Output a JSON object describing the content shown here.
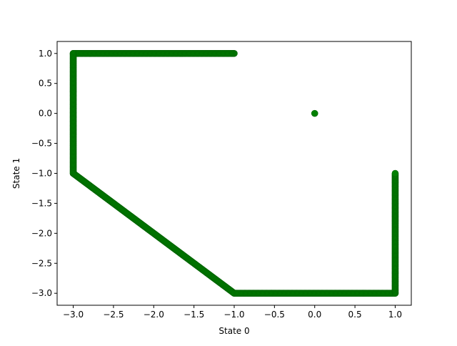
{
  "chart_data": {
    "type": "scatter",
    "title": "",
    "xlabel": "State 0",
    "ylabel": "State 1",
    "xlim": [
      -3.2,
      1.2
    ],
    "ylim": [
      -3.2,
      1.2
    ],
    "x_ticks": [
      -3.0,
      -2.5,
      -2.0,
      -1.5,
      -1.0,
      -0.5,
      0.0,
      0.5,
      1.0
    ],
    "y_ticks": [
      -3.0,
      -2.5,
      -2.0,
      -1.5,
      -1.0,
      -0.5,
      0.0,
      0.5,
      1.0
    ],
    "x_tick_labels": [
      "−3.0",
      "−2.5",
      "−2.0",
      "−1.5",
      "−1.0",
      "−0.5",
      "0.0",
      "0.5",
      "1.0"
    ],
    "y_tick_labels": [
      "−3.0",
      "−2.5",
      "−2.0",
      "−1.5",
      "−1.0",
      "−0.5",
      "0.0",
      "0.5",
      "1.0"
    ],
    "grid": false,
    "legend": null,
    "marker_color": "#008000",
    "series": [
      {
        "description_points": "trajectory path traced by dense markers",
        "segments": [
          {
            "from": [
              -1.0,
              1.0
            ],
            "to": [
              -3.0,
              1.0
            ]
          },
          {
            "from": [
              -3.0,
              1.0
            ],
            "to": [
              -3.0,
              -1.0
            ]
          },
          {
            "from": [
              -3.0,
              -1.0
            ],
            "to": [
              -1.0,
              -3.0
            ]
          },
          {
            "from": [
              -1.0,
              -3.0
            ],
            "to": [
              1.0,
              -3.0
            ]
          },
          {
            "from": [
              1.0,
              -3.0
            ],
            "to": [
              1.0,
              -1.0
            ]
          }
        ],
        "isolated_points": [
          [
            0.0,
            0.0
          ]
        ]
      }
    ]
  }
}
